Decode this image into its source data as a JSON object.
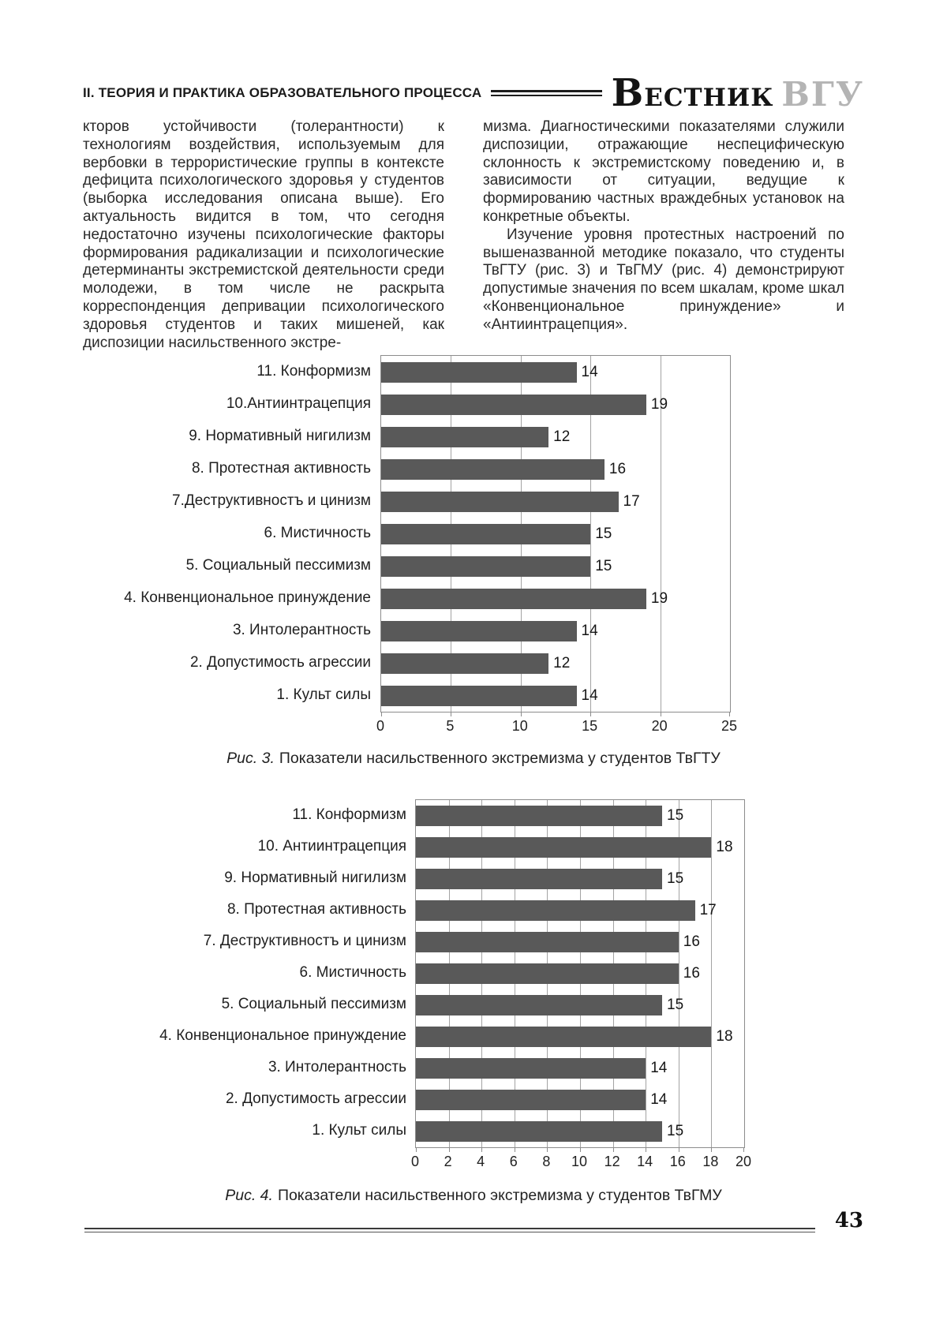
{
  "header": {
    "section_title": "II. ТЕОРИЯ И ПРАКТИКА ОБРАЗОВАТЕЛЬНОГО ПРОЦЕССА",
    "journal_word1": "Вестник",
    "journal_word2": "ВГУ"
  },
  "article": {
    "left_column": "кторов устойчивости (толерантности) к технологиям воздействия, используемым для вербовки в террористические группы в контексте дефицита психологического здоровья у студентов (выборка исследования описана выше). Его актуальность видится в том, что сегодня недостаточно изучены психологические факторы формирования радикализации и психологические детерминанты экстремистской деятельности среди молодежи, в том числе не раскрыта корреспонденция депривации психологического здоровья студентов и таких мишеней, как диспозиции насильственного экстре-",
    "right_column_p1": "мизма. Диагностическими показателями служили диспозиции, отражающие неспецифическую склонность к экстремистскому поведению и, в зависимости от ситуации, ведущие к формированию частных враждебных установок на конкретные объекты.",
    "right_column_p2": "Изучение уровня протестных настроений по вышеназванной методике показало, что студенты ТвГТУ (рис. 3) и ТвГМУ (рис. 4) демонстрируют допустимые значения по всем шкалам, кроме шкал «Конвенциональное принуждение» и «Антиинтрацепция»."
  },
  "chart_data": [
    {
      "type": "bar",
      "orientation": "horizontal",
      "categories": [
        "11. Конформизм",
        "10.Антиинтрацепция",
        "9. Нормативный нигилизм",
        "8. Протестная активность",
        "7.Деструктивностъ и цинизм",
        "6. Мистичность",
        "5. Социальный пессимизм",
        "4. Конвенциональное принуждение",
        "3. Интолерантность",
        "2. Допустимость агрессии",
        "1. Культ силы"
      ],
      "values": [
        14,
        19,
        12,
        16,
        17,
        15,
        15,
        19,
        14,
        12,
        14
      ],
      "xlim": [
        0,
        25
      ],
      "xticks": [
        0,
        5,
        10,
        15,
        20,
        25
      ],
      "grid": true,
      "data_labels": true,
      "legend": "none",
      "caption_prefix": "Рис. 3.",
      "caption": "Показатели насильственного экстремизма у студентов ТвГТУ"
    },
    {
      "type": "bar",
      "orientation": "horizontal",
      "categories": [
        "11. Конформизм",
        "10. Антиинтрацепция",
        "9. Нормативный нигилизм",
        "8. Протестная активность",
        "7. Деструктивностъ и цинизм",
        "6. Мистичность",
        "5. Социальный пессимизм",
        "4. Конвенциональное принуждение",
        "3. Интолерантность",
        "2. Допустимость агрессии",
        "1. Культ силы"
      ],
      "values": [
        15,
        18,
        15,
        17,
        16,
        16,
        15,
        18,
        14,
        14,
        15
      ],
      "xlim": [
        0,
        20
      ],
      "xticks": [
        0,
        2,
        4,
        6,
        8,
        10,
        12,
        14,
        16,
        18,
        20
      ],
      "grid": true,
      "data_labels": true,
      "legend": "none",
      "caption_prefix": "Рис. 4.",
      "caption": "Показатели насильственного экстремизма у студентов ТвГМУ"
    }
  ],
  "colors": {
    "bar": "#595959",
    "gridline": "#a3a3a3",
    "plot_border": "#8c8c8c",
    "journal_gray": "#b4b4b4",
    "text": "#232323"
  },
  "footer": {
    "page_number": "43"
  }
}
